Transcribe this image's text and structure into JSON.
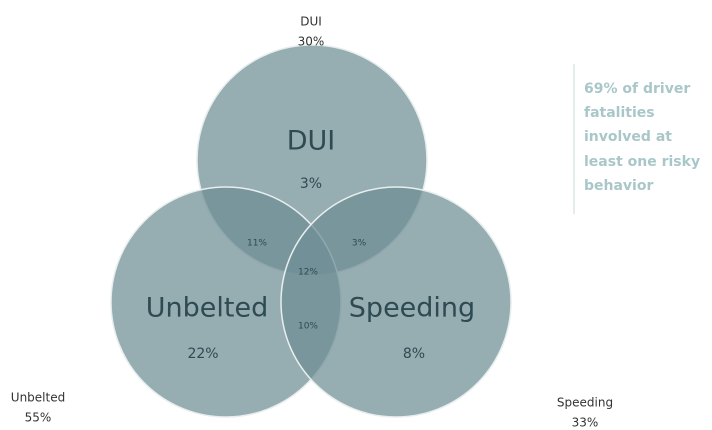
{
  "sets": [
    {
      "name": "DUI",
      "total": "30%",
      "label": "DUI",
      "only": "3%"
    },
    {
      "name": "Unbelted",
      "total": "55%",
      "label": "Unbelted",
      "only": "22%"
    },
    {
      "name": "Speeding",
      "total": "33%",
      "label": "Speeding",
      "only": "8%"
    }
  ],
  "overlaps": {
    "dui_unbelted": "11%",
    "dui_speeding": "3%",
    "all": "12%",
    "unbelted_speeding": "10%"
  },
  "callout": {
    "lines": [
      "69% of driver",
      "fatalities",
      "involved at",
      "least one risky",
      "behavior"
    ]
  }
}
